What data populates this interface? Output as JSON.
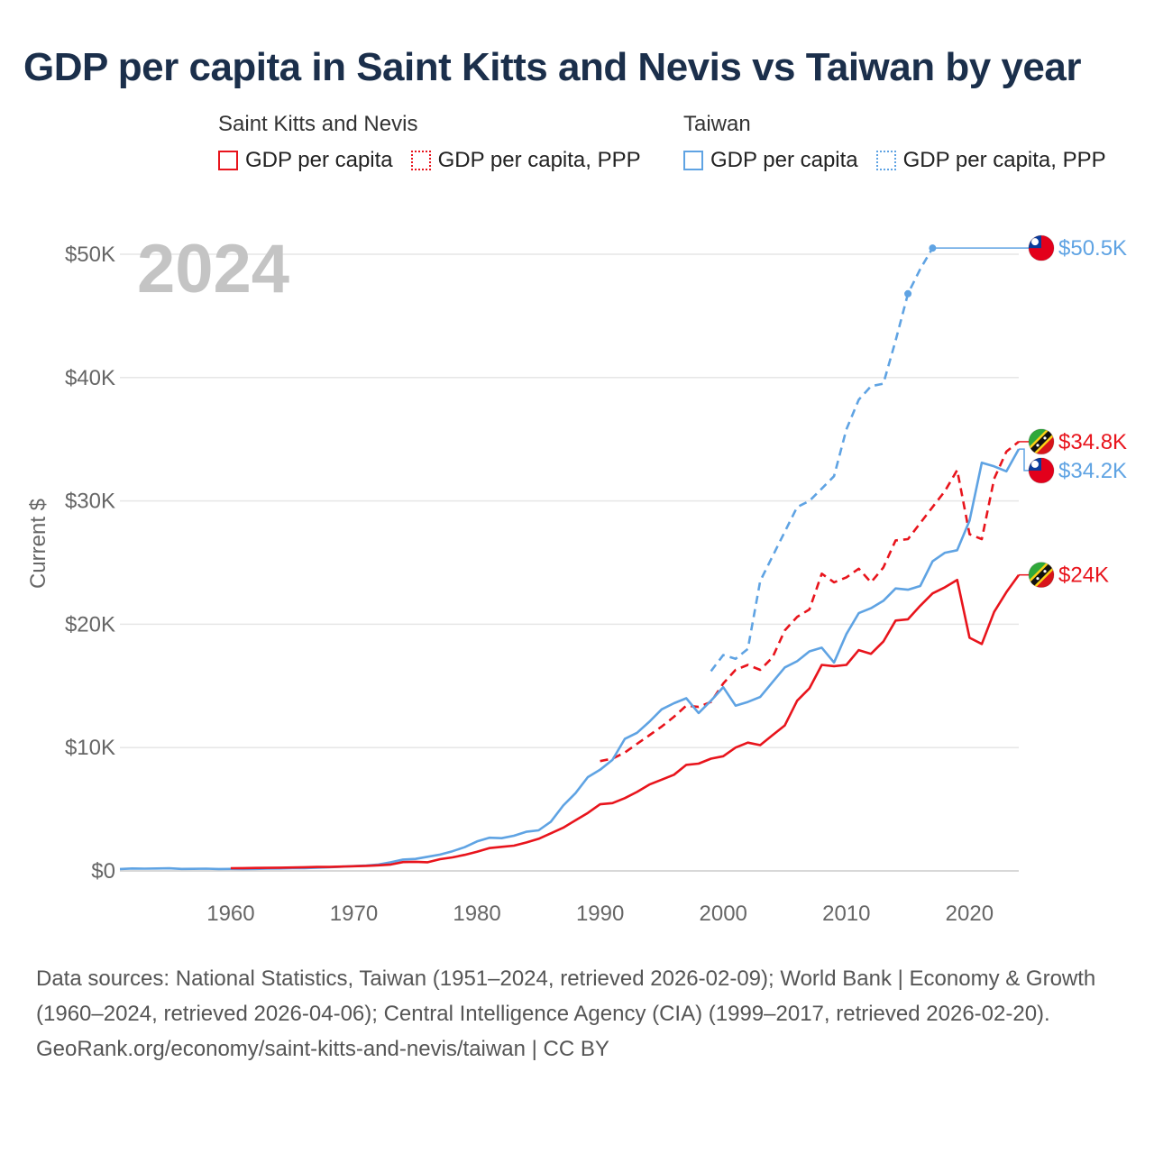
{
  "title": "GDP per capita in Saint Kitts and Nevis vs Taiwan by year",
  "legend": {
    "groups": [
      {
        "name": "Saint Kitts and Nevis",
        "color": "#e8141c",
        "items": [
          {
            "label": "GDP per capita",
            "style": "solid"
          },
          {
            "label": "GDP per capita, PPP",
            "style": "dotted"
          }
        ]
      },
      {
        "name": "Taiwan",
        "color": "#5fa3e3",
        "items": [
          {
            "label": "GDP per capita",
            "style": "solid"
          },
          {
            "label": "GDP per capita, PPP",
            "style": "dotted"
          }
        ]
      }
    ]
  },
  "footer": {
    "sources": "Data sources: National Statistics, Taiwan (1951–2024, retrieved 2026-02-09); World Bank | Economy & Growth (1960–2024, retrieved 2026-04-06); Central Intelligence Agency (CIA) (1999–2017, retrieved 2026-02-20).",
    "url": "GeoRank.org/economy/saint-kitts-and-nevis/taiwan | CC BY"
  },
  "chart_data": {
    "type": "line",
    "year_label": "2024",
    "ylabel": "Current $",
    "xlim": [
      1951,
      2024
    ],
    "ylim": [
      0,
      52000
    ],
    "x_ticks": [
      1960,
      1970,
      1980,
      1990,
      2000,
      2010,
      2020
    ],
    "y_ticks": [
      {
        "value": 0,
        "label": "$0"
      },
      {
        "value": 10000,
        "label": "$10K"
      },
      {
        "value": 20000,
        "label": "$20K"
      },
      {
        "value": 30000,
        "label": "$30K"
      },
      {
        "value": 40000,
        "label": "$40K"
      },
      {
        "value": 50000,
        "label": "$50K"
      }
    ],
    "series": [
      {
        "name": "Taiwan GDP per capita, PPP",
        "country": "Taiwan",
        "color": "#5fa3e3",
        "dash": "dashed",
        "end_label": "$50.5K",
        "dots": [
          2015,
          2017
        ],
        "flag": "taiwan",
        "x": [
          1999,
          2000,
          2001,
          2002,
          2003,
          2004,
          2005,
          2006,
          2007,
          2008,
          2009,
          2010,
          2011,
          2012,
          2013,
          2014,
          2015,
          2016,
          2017
        ],
        "y": [
          16200,
          17500,
          17200,
          18000,
          23500,
          25500,
          27500,
          29500,
          30000,
          31000,
          32000,
          35800,
          38200,
          39300,
          39500,
          43000,
          46800,
          48800,
          50500
        ]
      },
      {
        "name": "Saint Kitts and Nevis GDP per capita, PPP",
        "country": "Saint Kitts and Nevis",
        "color": "#e8141c",
        "dash": "dashed",
        "end_label": "$34.8K",
        "flag": "kitts",
        "x": [
          1990,
          1991,
          1992,
          1993,
          1994,
          1995,
          1996,
          1997,
          1998,
          1999,
          2000,
          2001,
          2002,
          2003,
          2004,
          2005,
          2006,
          2007,
          2008,
          2009,
          2010,
          2011,
          2012,
          2013,
          2014,
          2015,
          2016,
          2017,
          2018,
          2019,
          2020,
          2021,
          2022,
          2023,
          2024
        ],
        "y": [
          8900,
          9100,
          9600,
          10300,
          11000,
          11700,
          12500,
          13400,
          13300,
          13700,
          15200,
          16300,
          16700,
          16300,
          17300,
          19500,
          20600,
          21200,
          24100,
          23400,
          23800,
          24500,
          23400,
          24600,
          26800,
          26900,
          28200,
          29500,
          30800,
          32500,
          27300,
          26900,
          31800,
          34000,
          34800
        ]
      },
      {
        "name": "Taiwan GDP per capita",
        "country": "Taiwan",
        "color": "#5fa3e3",
        "dash": "solid",
        "end_label": "$34.2K",
        "flag": "taiwan",
        "x": [
          1951,
          1952,
          1953,
          1954,
          1955,
          1956,
          1957,
          1958,
          1959,
          1960,
          1961,
          1962,
          1963,
          1964,
          1965,
          1966,
          1967,
          1968,
          1969,
          1970,
          1971,
          1972,
          1973,
          1974,
          1975,
          1976,
          1977,
          1978,
          1979,
          1980,
          1981,
          1982,
          1983,
          1984,
          1985,
          1986,
          1987,
          1988,
          1989,
          1990,
          1991,
          1992,
          1993,
          1994,
          1995,
          1996,
          1997,
          1998,
          1999,
          2000,
          2001,
          2002,
          2003,
          2004,
          2005,
          2006,
          2007,
          2008,
          2009,
          2010,
          2011,
          2012,
          2013,
          2014,
          2015,
          2016,
          2017,
          2018,
          2019,
          2020,
          2021,
          2022,
          2023,
          2024
        ],
        "y": [
          150,
          200,
          180,
          200,
          210,
          160,
          170,
          180,
          150,
          160,
          150,
          160,
          180,
          200,
          220,
          230,
          260,
          300,
          340,
          390,
          440,
          520,
          700,
          920,
          970,
          1150,
          1320,
          1590,
          1920,
          2390,
          2690,
          2650,
          2850,
          3170,
          3290,
          3990,
          5300,
          6300,
          7600,
          8200,
          9000,
          10700,
          11200,
          12100,
          13100,
          13600,
          14000,
          12800,
          13800,
          14900,
          13400,
          13700,
          14100,
          15300,
          16500,
          17000,
          17800,
          18100,
          16900,
          19200,
          20900,
          21300,
          21900,
          22900,
          22800,
          23100,
          25100,
          25800,
          26000,
          28400,
          33100,
          32800,
          32400,
          34200
        ]
      },
      {
        "name": "Saint Kitts and Nevis GDP per capita",
        "country": "Saint Kitts and Nevis",
        "color": "#e8141c",
        "dash": "solid",
        "end_label": "$24K",
        "flag": "kitts",
        "x": [
          1960,
          1961,
          1962,
          1963,
          1964,
          1965,
          1966,
          1967,
          1968,
          1969,
          1970,
          1971,
          1972,
          1973,
          1974,
          1975,
          1976,
          1977,
          1978,
          1979,
          1980,
          1981,
          1982,
          1983,
          1984,
          1985,
          1986,
          1987,
          1988,
          1989,
          1990,
          1991,
          1992,
          1993,
          1994,
          1995,
          1996,
          1997,
          1998,
          1999,
          2000,
          2001,
          2002,
          2003,
          2004,
          2005,
          2006,
          2007,
          2008,
          2009,
          2010,
          2011,
          2012,
          2013,
          2014,
          2015,
          2016,
          2017,
          2018,
          2019,
          2020,
          2021,
          2022,
          2023,
          2024
        ],
        "y": [
          220,
          230,
          240,
          250,
          260,
          280,
          300,
          320,
          320,
          350,
          380,
          410,
          450,
          520,
          720,
          740,
          700,
          950,
          1100,
          1300,
          1550,
          1850,
          1950,
          2050,
          2300,
          2600,
          3050,
          3500,
          4100,
          4700,
          5400,
          5500,
          5900,
          6400,
          7000,
          7400,
          7800,
          8600,
          8700,
          9100,
          9300,
          10000,
          10400,
          10200,
          11000,
          11800,
          13800,
          14800,
          16700,
          16600,
          16700,
          17900,
          17600,
          18600,
          20300,
          20400,
          21500,
          22500,
          23000,
          23600,
          18900,
          18400,
          21000,
          22600,
          24000
        ]
      }
    ]
  }
}
